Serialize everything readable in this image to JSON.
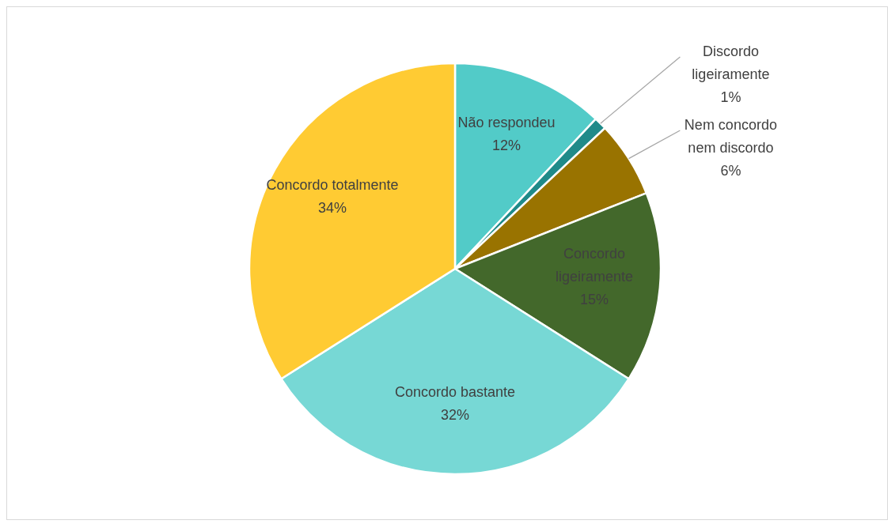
{
  "chart_data": {
    "type": "pie",
    "categories": [
      "Não respondeu",
      "Discordo ligeiramente",
      "Nem concordo nem discordo",
      "Concordo ligeiramente",
      "Concordo bastante",
      "Concordo totalmente"
    ],
    "values": [
      12,
      1,
      6,
      15,
      32,
      34
    ],
    "value_labels": [
      "12%",
      "1%",
      "6%",
      "15%",
      "32%",
      "34%"
    ],
    "colors": [
      "#52cbc8",
      "#1f8a89",
      "#997300",
      "#43682b",
      "#77d8d5",
      "#ffcb33"
    ]
  }
}
